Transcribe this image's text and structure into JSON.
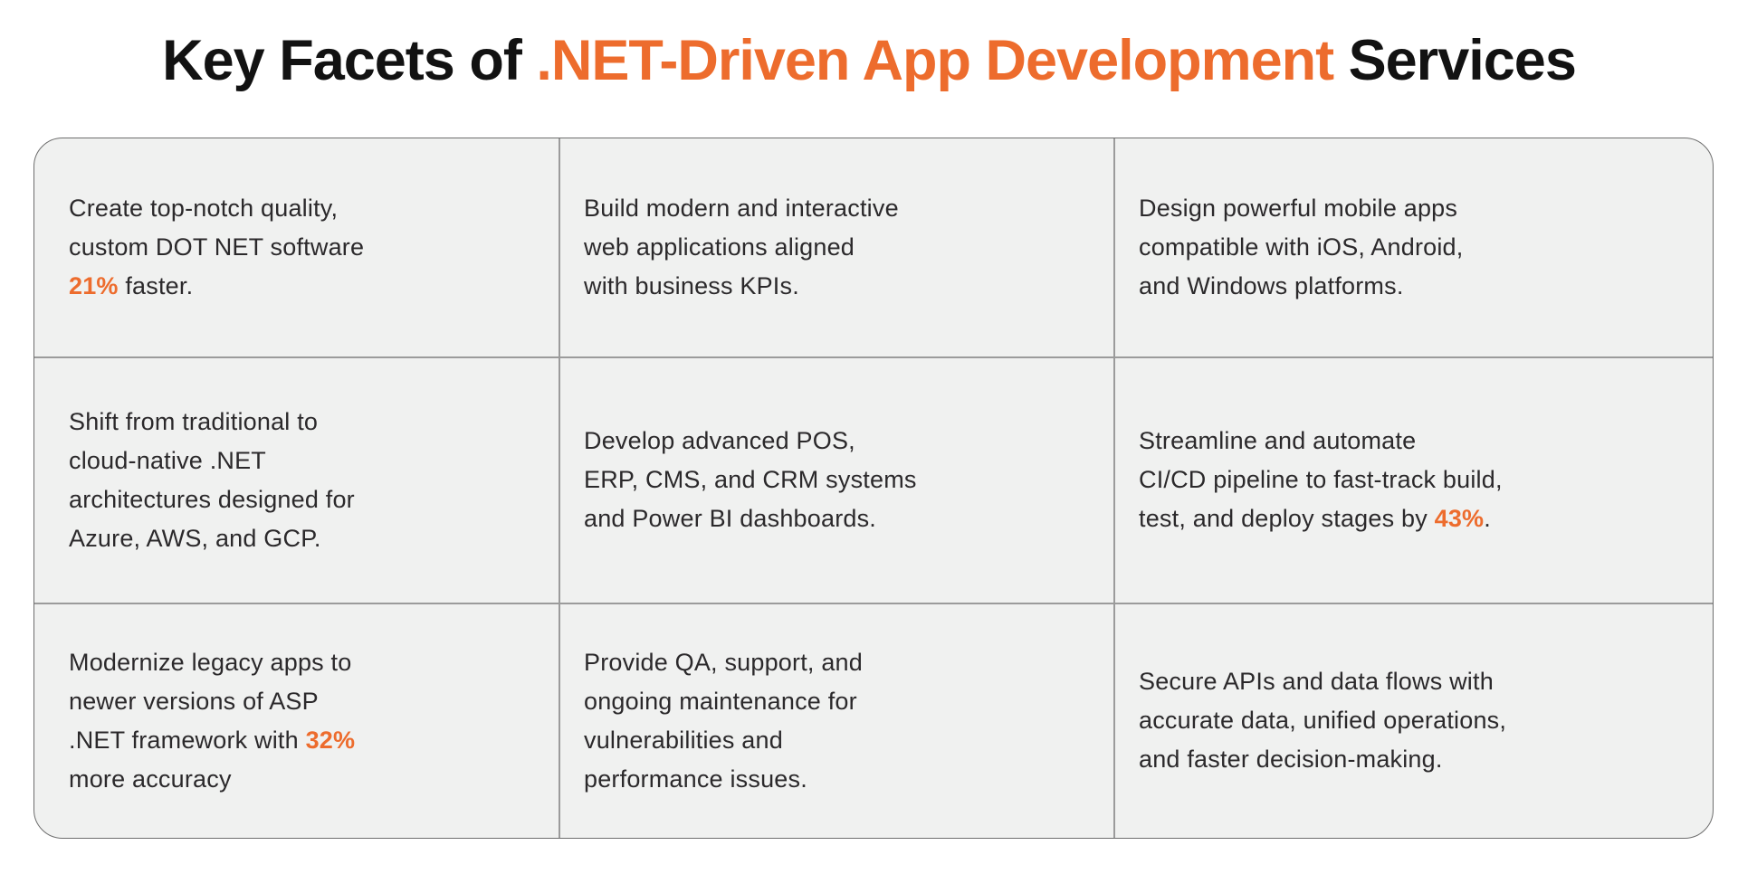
{
  "header": {
    "title_prefix": "Key Facets of ",
    "title_highlight": ".NET-Driven App Development",
    "title_suffix": " Services"
  },
  "colors": {
    "accent_orange": "#ED6C2D",
    "title_black": "#121212",
    "body_text": "#2B292B",
    "cell_bg": "#F0F1F0",
    "grid_line": "#9B9B9B",
    "outer_border": "#6E6E6E",
    "page_bg": "#FFFFFF"
  },
  "grid": {
    "rows": 3,
    "cols": 3,
    "cells": [
      {
        "pre": "Create top-notch quality,\ncustom DOT NET software\n",
        "accent": "21%",
        "post": " faster."
      },
      {
        "pre": "Build modern and interactive\nweb applications aligned\nwith business KPIs.",
        "accent": "",
        "post": ""
      },
      {
        "pre": "Design powerful mobile apps\ncompatible with iOS, Android,\nand Windows platforms.",
        "accent": "",
        "post": ""
      },
      {
        "pre": "Shift from traditional to\ncloud-native .NET\narchitectures designed for\nAzure, AWS, and GCP.",
        "accent": "",
        "post": ""
      },
      {
        "pre": "Develop advanced POS,\nERP, CMS, and CRM systems\nand Power BI dashboards.",
        "accent": "",
        "post": ""
      },
      {
        "pre": "Streamline and automate\nCI/CD pipeline to fast-track build,\ntest, and deploy stages by ",
        "accent": "43%",
        "post": "."
      },
      {
        "pre": "Modernize legacy apps to\nnewer versions of ASP\n.NET framework with ",
        "accent": "32%",
        "post": "\nmore accuracy"
      },
      {
        "pre": "Provide QA, support, and\nongoing maintenance for\nvulnerabilities and\nperformance issues.",
        "accent": "",
        "post": ""
      },
      {
        "pre": "Secure APIs and data flows with\naccurate data, unified operations,\nand faster decision-making.",
        "accent": "",
        "post": ""
      }
    ]
  }
}
